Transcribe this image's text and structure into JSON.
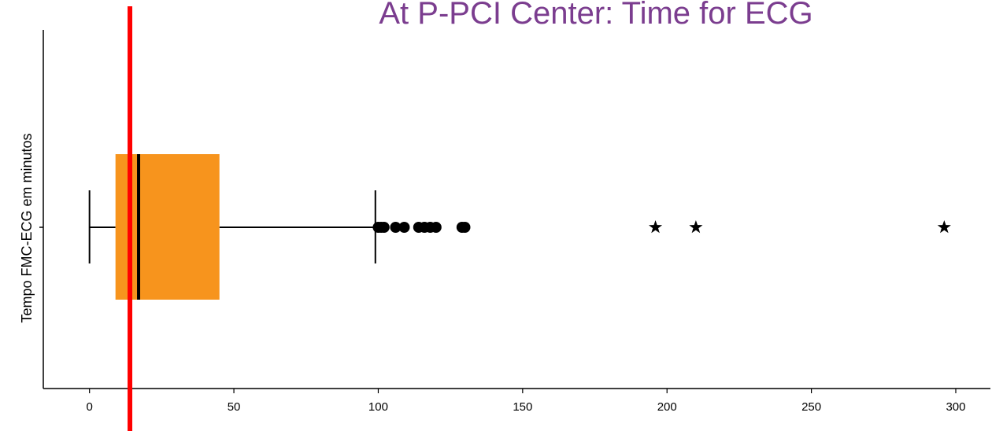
{
  "chart_data": {
    "type": "boxplot",
    "orientation": "horizontal",
    "title": "At P-PCI Center: Time for ECG",
    "ylabel": "Tempo FMC-ECG em minutos",
    "xlabel": "",
    "xlim": [
      -16,
      312
    ],
    "x_ticks": [
      0,
      50,
      100,
      150,
      200,
      250,
      300
    ],
    "grid": false,
    "box": {
      "whisker_low": 0,
      "q1": 9,
      "median": 17,
      "q3": 45,
      "whisker_high": 99
    },
    "outliers": [
      100,
      101,
      102,
      106,
      109,
      114,
      116,
      118,
      120,
      129,
      130
    ],
    "extremes": [
      196,
      210,
      296
    ],
    "reference_line": 14,
    "colors": {
      "title": "#7b3d8f",
      "box_fill": "#f7941d",
      "reference_line": "#ff0000",
      "axis": "#000000"
    }
  }
}
